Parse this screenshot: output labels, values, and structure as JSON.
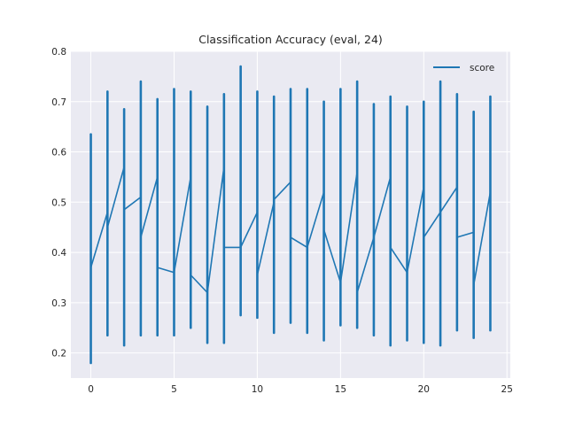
{
  "chart_data": {
    "type": "line",
    "title": "Classification Accuracy (eval, 24)",
    "xlabel": "",
    "ylabel": "",
    "xlim": [
      -1.2,
      25.2
    ],
    "ylim": [
      0.15,
      0.8
    ],
    "x_ticks": [
      0,
      5,
      10,
      15,
      20,
      25
    ],
    "y_ticks": [
      0.2,
      0.3,
      0.4,
      0.5,
      0.6,
      0.7,
      0.8
    ],
    "grid": true,
    "legend_position": "top-right",
    "series": [
      {
        "name": "score",
        "color": "#1f77b4",
        "x": [
          0,
          1,
          2,
          3,
          4,
          5,
          6,
          7,
          8,
          9,
          10,
          11,
          12,
          13,
          14,
          15,
          16,
          17,
          18,
          19,
          20,
          21,
          22,
          23,
          24
        ],
        "y": [
          0.37,
          0.48,
          0.57,
          0.51,
          0.55,
          0.36,
          0.55,
          0.32,
          0.57,
          0.41,
          0.48,
          0.5,
          0.54,
          0.41,
          0.52,
          0.34,
          0.56,
          0.43,
          0.55,
          0.36,
          0.53,
          0.48,
          0.53,
          0.44,
          0.52
        ],
        "y_min": [
          0.18,
          0.235,
          0.215,
          0.235,
          0.235,
          0.235,
          0.25,
          0.22,
          0.22,
          0.275,
          0.27,
          0.24,
          0.26,
          0.24,
          0.225,
          0.255,
          0.25,
          0.235,
          0.215,
          0.225,
          0.22,
          0.215,
          0.245,
          0.23,
          0.245
        ],
        "y_max": [
          0.635,
          0.72,
          0.685,
          0.74,
          0.705,
          0.725,
          0.72,
          0.69,
          0.715,
          0.77,
          0.72,
          0.71,
          0.725,
          0.725,
          0.7,
          0.725,
          0.74,
          0.695,
          0.71,
          0.69,
          0.7,
          0.74,
          0.715,
          0.68,
          0.71
        ],
        "y_start": [
          0.37,
          0.45,
          0.485,
          0.43,
          0.37,
          0.36,
          0.355,
          0.32,
          0.41,
          0.41,
          0.355,
          0.505,
          0.43,
          0.41,
          0.445,
          0.34,
          0.32,
          0.43,
          0.41,
          0.36,
          0.43,
          0.48,
          0.43,
          0.335,
          0.44
        ]
      }
    ]
  }
}
